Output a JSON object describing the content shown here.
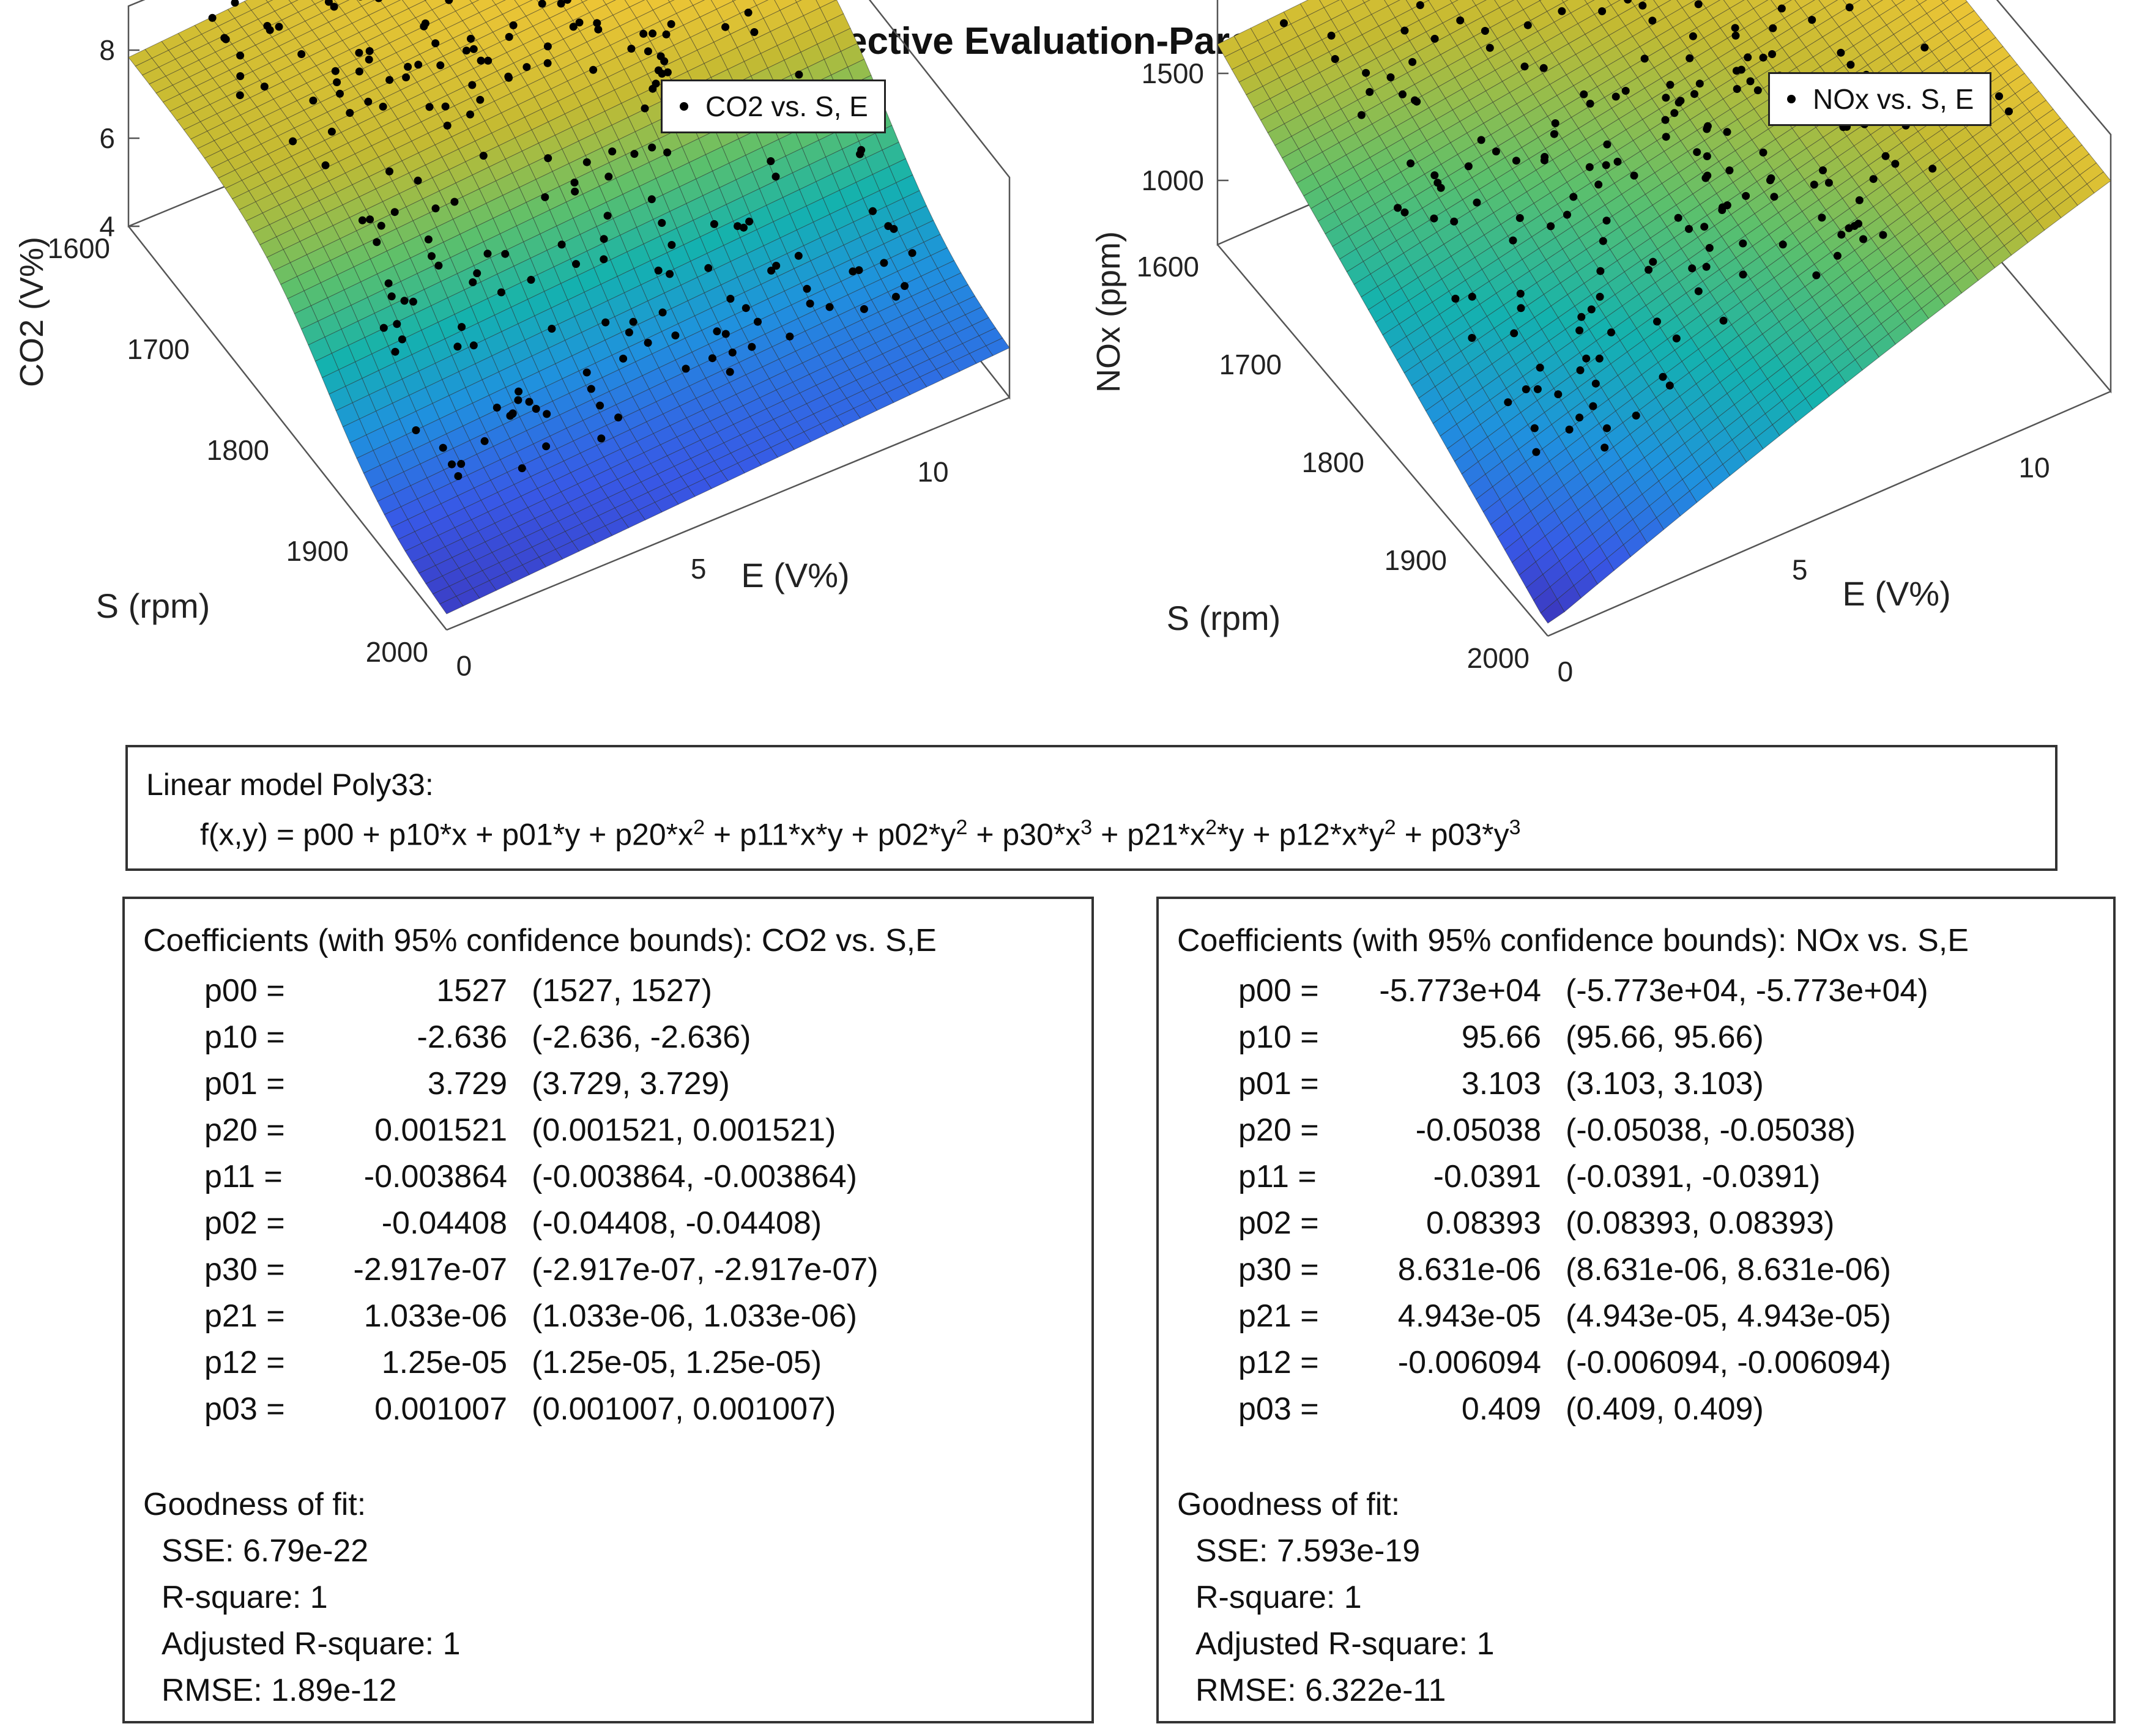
{
  "title": "Min Objective Evaluation-Pareto Solution",
  "chart_data": [
    {
      "type": "surface3d",
      "name": "co2",
      "zlabel": "CO2 (V%)",
      "ylabel": "S (rpm)",
      "xlabel": "E (V%)",
      "zticks": [
        "4",
        "6",
        "8"
      ],
      "sticks": [
        "1600",
        "1700",
        "1800",
        "1900",
        "2000"
      ],
      "eticks": [
        "0",
        "5",
        "10"
      ],
      "zlim": [
        4,
        9
      ],
      "legend": "CO2 vs. S, E",
      "legend_position": "top-right",
      "points": 260
    },
    {
      "type": "surface3d",
      "name": "nox",
      "zlabel": "NOx (ppm)",
      "ylabel": "S (rpm)",
      "xlabel": "E (V%)",
      "zticks": [
        "1000",
        "1500"
      ],
      "sticks": [
        "1600",
        "1700",
        "1800",
        "1900",
        "2000"
      ],
      "eticks": [
        "0",
        "5",
        "10"
      ],
      "zlim": [
        700,
        1900
      ],
      "legend": "NOx vs. S, E",
      "legend_position": "top-right",
      "points": 260
    }
  ],
  "model": {
    "heading": "Linear model Poly33:",
    "formula": "f(x,y) = p00 + p10*x + p01*y + p20*x2 + p11*x*y + p02*y2 + p30*x3 + p21*x2*y + p12*x*y2 + p03*y3"
  },
  "co2_fit": {
    "heading": "Coefficients (with 95% confidence bounds): CO2 vs. S,E",
    "coefficients": [
      {
        "name": "p00 =",
        "value": "1527",
        "bounds": "(1527, 1527)"
      },
      {
        "name": "p10 =",
        "value": "-2.636",
        "bounds": "(-2.636, -2.636)"
      },
      {
        "name": "p01 =",
        "value": "3.729",
        "bounds": "(3.729, 3.729)"
      },
      {
        "name": "p20 =",
        "value": "0.001521",
        "bounds": "(0.001521, 0.001521)"
      },
      {
        "name": "p11 =",
        "value": "-0.003864",
        "bounds": "(-0.003864, -0.003864)"
      },
      {
        "name": "p02 =",
        "value": "-0.04408",
        "bounds": "(-0.04408, -0.04408)"
      },
      {
        "name": "p30 =",
        "value": "-2.917e-07",
        "bounds": "(-2.917e-07, -2.917e-07)"
      },
      {
        "name": "p21 =",
        "value": "1.033e-06",
        "bounds": "(1.033e-06, 1.033e-06)"
      },
      {
        "name": "p12 =",
        "value": "1.25e-05",
        "bounds": "(1.25e-05, 1.25e-05)"
      },
      {
        "name": "p03 =",
        "value": "0.001007",
        "bounds": "(0.001007, 0.001007)"
      }
    ],
    "gof_heading": "Goodness of fit:",
    "sse": "SSE: 6.79e-22",
    "rsq": "R-square: 1",
    "adjrsq": "Adjusted R-square: 1",
    "rmse": "RMSE: 1.89e-12"
  },
  "nox_fit": {
    "heading": "Coefficients (with 95% confidence bounds):  NOx vs. S,E",
    "coefficients": [
      {
        "name": "p00 =",
        "value": "-5.773e+04",
        "bounds": "(-5.773e+04, -5.773e+04)"
      },
      {
        "name": "p10 =",
        "value": "95.66",
        "bounds": "(95.66, 95.66)"
      },
      {
        "name": "p01 =",
        "value": "3.103",
        "bounds": "(3.103, 3.103)"
      },
      {
        "name": "p20 =",
        "value": "-0.05038",
        "bounds": "(-0.05038, -0.05038)"
      },
      {
        "name": "p11 =",
        "value": "-0.0391",
        "bounds": "(-0.0391, -0.0391)"
      },
      {
        "name": "p02 =",
        "value": "0.08393",
        "bounds": "(0.08393, 0.08393)"
      },
      {
        "name": "p30 =",
        "value": "8.631e-06",
        "bounds": "(8.631e-06, 8.631e-06)"
      },
      {
        "name": "p21 =",
        "value": "4.943e-05",
        "bounds": "(4.943e-05, 4.943e-05)"
      },
      {
        "name": "p12 =",
        "value": "-0.006094",
        "bounds": "(-0.006094, -0.006094)"
      },
      {
        "name": "p03 =",
        "value": "0.409",
        "bounds": "(0.409, 0.409)"
      }
    ],
    "gof_heading": "Goodness of fit:",
    "sse": "SSE: 7.593e-19",
    "rsq": "R-square: 1",
    "adjrsq": "Adjusted R-square: 1",
    "rmse": "RMSE: 6.322e-11"
  }
}
